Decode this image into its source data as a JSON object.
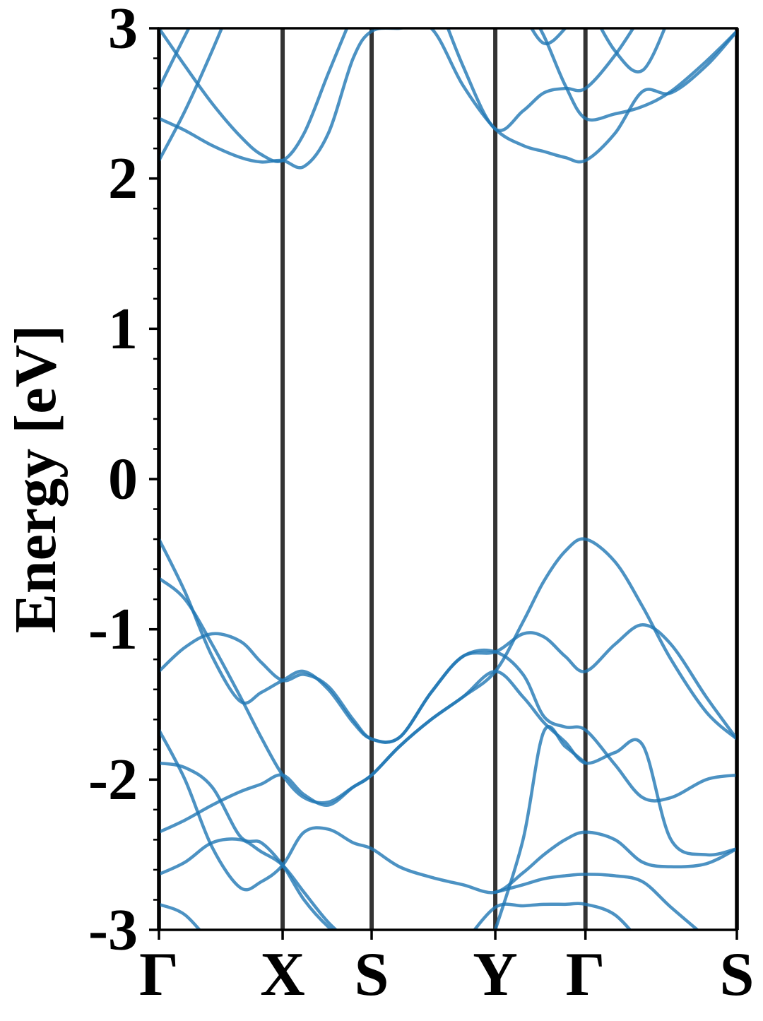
{
  "chart_data": {
    "type": "line",
    "ylabel": "Energy [eV]",
    "xlim": [
      0,
      1
    ],
    "ylim": [
      -3,
      3
    ],
    "yticks": [
      -3,
      -2,
      -1,
      0,
      1,
      2,
      3
    ],
    "yminorticks": [
      -2.8,
      -2.6,
      -2.4,
      -2.2,
      -1.8,
      -1.6,
      -1.4,
      -1.2,
      -0.8,
      -0.6,
      -0.4,
      -0.2,
      0.2,
      0.4,
      0.6,
      0.8,
      1.2,
      1.4,
      1.6,
      1.8,
      2.2,
      2.4,
      2.6,
      2.8
    ],
    "xticks": [
      {
        "value": 0,
        "label": "Γ"
      },
      {
        "value": 0.214,
        "label": "X"
      },
      {
        "value": 0.368,
        "label": "S"
      },
      {
        "value": 0.582,
        "label": "Y"
      },
      {
        "value": 0.738,
        "label": "Γ"
      },
      {
        "value": 1,
        "label": "S"
      }
    ],
    "symmetry_lines": true,
    "symmetry_line_color": "#333333",
    "x": [
      0,
      0.045,
      0.092,
      0.141,
      0.177,
      0.214,
      0.251,
      0.293,
      0.336,
      0.368,
      0.416,
      0.471,
      0.526,
      0.582,
      0.63,
      0.666,
      0.703,
      0.738,
      0.789,
      0.837,
      0.886,
      0.947,
      1
    ],
    "series": [
      {
        "color": "#1f77b4",
        "values": [
          2.12,
          2.45,
          2.85,
          3.3,
          null,
          null,
          null,
          null,
          null,
          null,
          null,
          null,
          null,
          null,
          null,
          null,
          null,
          null,
          null,
          null,
          null,
          null,
          null
        ]
      },
      {
        "color": "#1f77b4",
        "values": [
          2.4,
          2.32,
          2.22,
          2.14,
          2.11,
          2.12,
          2.08,
          2.3,
          2.8,
          2.98,
          3.0,
          3.0,
          2.62,
          2.33,
          2.22,
          2.18,
          2.14,
          2.12,
          2.3,
          2.58,
          2.57,
          2.75,
          2.98
        ]
      },
      {
        "color": "#1f77b4",
        "values": [
          2.6,
          2.95,
          3.3,
          null,
          null,
          null,
          null,
          null,
          null,
          null,
          null,
          3.3,
          2.75,
          2.33,
          2.45,
          2.57,
          2.6,
          2.6,
          2.82,
          3.1,
          null,
          null,
          null
        ]
      },
      {
        "color": "#1f77b4",
        "values": [
          3.0,
          2.75,
          2.5,
          2.28,
          2.16,
          2.12,
          2.3,
          2.7,
          3.1,
          null,
          null,
          null,
          null,
          null,
          null,
          null,
          null,
          null,
          null,
          null,
          null,
          null,
          null
        ]
      },
      {
        "color": "#1f77b4",
        "values": [
          null,
          null,
          null,
          null,
          null,
          null,
          null,
          null,
          null,
          null,
          null,
          null,
          null,
          null,
          3.1,
          2.9,
          3.0,
          3.2,
          null,
          null,
          null,
          null,
          null
        ]
      },
      {
        "color": "#1f77b4",
        "values": [
          null,
          null,
          null,
          null,
          null,
          null,
          null,
          null,
          null,
          null,
          null,
          null,
          null,
          null,
          null,
          null,
          null,
          3.2,
          2.85,
          2.72,
          3.1,
          null,
          null
        ]
      },
      {
        "color": "#1f77b4",
        "values": [
          null,
          null,
          null,
          null,
          null,
          null,
          null,
          null,
          null,
          null,
          null,
          null,
          null,
          null,
          3.2,
          2.95,
          2.62,
          2.4,
          2.43,
          2.48,
          2.58,
          2.78,
          2.98
        ]
      },
      {
        "color": "#1f77b4",
        "values": [
          -0.4,
          -0.75,
          -1.18,
          -1.48,
          -1.42,
          -1.34,
          -1.28,
          -1.4,
          -1.62,
          -1.73,
          -1.72,
          -1.42,
          -1.18,
          -1.15,
          -1.03,
          -1.05,
          -1.18,
          -1.28,
          -1.1,
          -0.97,
          -1.1,
          -1.45,
          -1.73
        ]
      },
      {
        "color": "#1f77b4",
        "values": [
          -0.66,
          -0.8,
          -1.1,
          -1.45,
          -1.72,
          -1.97,
          -2.12,
          -2.15,
          -2.05,
          -1.97,
          -1.78,
          -1.6,
          -1.45,
          -1.28,
          -0.95,
          -0.68,
          -0.48,
          -0.4,
          -0.55,
          -0.85,
          -1.2,
          -1.55,
          -1.73
        ]
      },
      {
        "color": "#1f77b4",
        "values": [
          -1.28,
          -1.12,
          -1.03,
          -1.08,
          -1.22,
          -1.34,
          -1.3,
          -1.38,
          -1.6,
          -1.73,
          -1.72,
          -1.42,
          -1.18,
          -1.15,
          -1.3,
          -1.58,
          -1.65,
          -1.67,
          -1.9,
          -2.12,
          -2.12,
          -2.0,
          -1.97
        ]
      },
      {
        "color": "#1f77b4",
        "values": [
          -1.67,
          -2.0,
          -2.45,
          -2.72,
          -2.68,
          -2.57,
          -2.35,
          -2.33,
          -2.42,
          -2.46,
          -2.58,
          -2.65,
          -2.7,
          -2.75,
          -2.62,
          -2.5,
          -2.4,
          -2.35,
          -2.4,
          -2.55,
          -2.58,
          -2.56,
          -2.46
        ]
      },
      {
        "color": "#1f77b4",
        "values": [
          -1.89,
          -1.92,
          -2.05,
          -2.38,
          -2.42,
          -2.57,
          -2.8,
          -2.98,
          -3.1,
          null,
          null,
          null,
          null,
          null,
          null,
          null,
          null,
          null,
          null,
          null,
          null,
          null,
          null
        ]
      },
      {
        "color": "#1f77b4",
        "values": [
          -2.35,
          -2.27,
          -2.17,
          -2.08,
          -2.03,
          -1.97,
          -2.1,
          -2.17,
          -2.05,
          -1.97,
          -1.78,
          -1.6,
          -1.45,
          -1.28,
          -1.45,
          -1.62,
          -1.75,
          -1.89,
          -1.82,
          -1.77,
          -2.4,
          -2.5,
          -2.46
        ]
      },
      {
        "color": "#1f77b4",
        "values": [
          -2.63,
          -2.55,
          -2.42,
          -2.4,
          -2.48,
          -2.57,
          -2.75,
          -2.95,
          -3.1,
          null,
          null,
          null,
          null,
          -2.75,
          -2.7,
          -2.66,
          -2.64,
          -2.63,
          -2.64,
          -2.68,
          -2.85,
          -3.05,
          null
        ]
      },
      {
        "color": "#1f77b4",
        "values": [
          -2.83,
          -2.9,
          -3.1,
          null,
          null,
          null,
          null,
          null,
          null,
          null,
          null,
          null,
          -3.1,
          -2.85,
          -2.84,
          -2.83,
          -2.83,
          -2.83,
          -2.9,
          -3.1,
          null,
          null,
          null
        ]
      },
      {
        "color": "#1f77b4",
        "values": [
          null,
          null,
          null,
          null,
          null,
          null,
          null,
          null,
          null,
          null,
          null,
          null,
          null,
          -3.0,
          -2.4,
          -1.68,
          -1.78,
          -1.89,
          null,
          null,
          null,
          null,
          null
        ]
      }
    ]
  }
}
